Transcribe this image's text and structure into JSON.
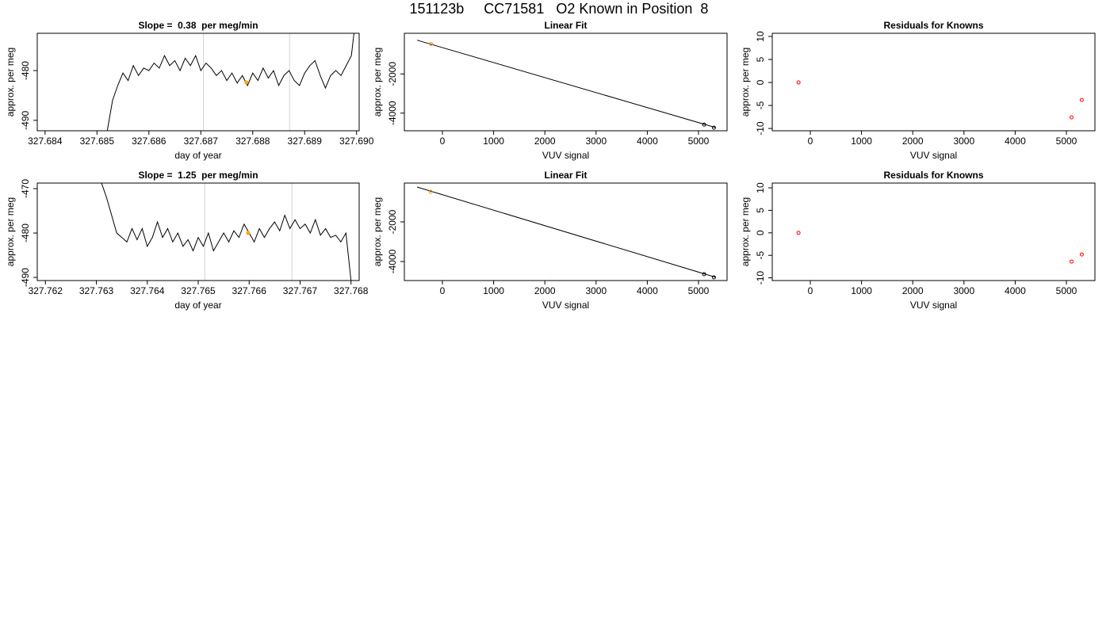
{
  "title": "151123b     CC71581   O2 Known in Position  8",
  "chart_data": [
    {
      "type": "line",
      "title": "Slope =  0.38  per meg/min",
      "xlabel": "day of year",
      "ylabel": "approx. per meg",
      "xlim": [
        327.68385,
        327.69005
      ],
      "ylim": [
        -492.1,
        -472.5
      ],
      "xticks": [
        327.684,
        327.685,
        327.686,
        327.687,
        327.688,
        327.689,
        {
          "value": 327.69,
          "label": "327.690"
        }
      ],
      "yticks": [
        -480,
        -490
      ],
      "color": "#000000",
      "x": [
        327.6852,
        327.6853,
        327.6854,
        327.6855,
        327.6856,
        327.6857,
        327.6858,
        327.6859,
        327.686,
        327.6861,
        327.6862,
        327.6863,
        327.6864,
        327.6865,
        327.6866,
        327.6867,
        327.6868,
        327.6869,
        327.687,
        327.6871,
        327.6872,
        327.6873,
        327.6874,
        327.6875,
        327.6876,
        327.6877,
        327.6878,
        327.6879,
        327.688,
        327.6881,
        327.6882,
        327.6883,
        327.6884,
        327.6885,
        327.6886,
        327.6887,
        327.6888,
        327.6889,
        327.689,
        327.6891,
        327.6892,
        327.6893,
        327.6894,
        327.6895,
        327.6896,
        327.6897,
        327.6898,
        327.6899,
        327.68995
      ],
      "values": [
        -492,
        -486,
        -483,
        -480.5,
        -482,
        -479,
        -481,
        -479.5,
        -480,
        -478.5,
        -479.5,
        -477,
        -479,
        -478,
        -480,
        -477.5,
        -479,
        -477,
        -480,
        -478.5,
        -479.5,
        -481,
        -480,
        -482,
        -480.5,
        -482.5,
        -481,
        -483,
        -480.5,
        -482,
        -479.5,
        -481.5,
        -480,
        -483,
        -481,
        -480,
        -482,
        -483,
        -480.5,
        -479,
        -478,
        -481,
        -483.5,
        -481,
        -480,
        -481,
        -479,
        -477,
        -472.5
      ],
      "vlines": [
        327.68705,
        327.68871
      ],
      "vline_color": "#d3d3d3",
      "highlight": {
        "x": 327.68788,
        "y": -482.4,
        "color": "#ffa500"
      }
    },
    {
      "type": "scatter",
      "title": "Linear Fit",
      "xlabel": "VUV signal",
      "ylabel": "approx. per meg",
      "xlim": [
        -743,
        5557
      ],
      "ylim": [
        -4902,
        78
      ],
      "xticks": [
        0,
        1000,
        2000,
        3000,
        4000,
        5000
      ],
      "yticks": [
        -2000,
        -4000
      ],
      "fit_line": {
        "x": [
          -495,
          5340
        ],
        "y": [
          -274,
          -4745
        ],
        "color": "#000000"
      },
      "series": [
        {
          "color": "#ff8c00",
          "x": [
            -220
          ],
          "values": [
            -470
          ]
        },
        {
          "color": "#000000",
          "x": [
            5110,
            5300
          ],
          "values": [
            -4588,
            -4745
          ]
        }
      ]
    },
    {
      "type": "scatter",
      "title": "Residuals for Knowns",
      "xlabel": "VUV signal",
      "ylabel": "approx. per meg",
      "xlim": [
        -743,
        5557
      ],
      "ylim": [
        -10.5,
        10.69
      ],
      "xticks": [
        0,
        1000,
        2000,
        3000,
        4000,
        5000
      ],
      "yticks": [
        10,
        5,
        0,
        -5,
        -10
      ],
      "series": [
        {
          "color": "#ff0000",
          "x": [
            -230,
            5100,
            5300
          ],
          "values": [
            0,
            -7.6,
            -3.8
          ]
        }
      ]
    },
    {
      "type": "line",
      "title": "Slope =  1.25  per meg/min",
      "xlabel": "day of year",
      "ylabel": "approx. per meg",
      "xlim": [
        327.76184,
        327.76816
      ],
      "ylim": [
        -490.7,
        -468.75
      ],
      "xticks": [
        327.762,
        327.763,
        327.764,
        327.765,
        327.766,
        327.767,
        327.768
      ],
      "yticks": [
        -470,
        -480,
        -490
      ],
      "color": "#000000",
      "x": [
        327.7631,
        327.7632,
        327.7633,
        327.7634,
        327.7635,
        327.7636,
        327.7637,
        327.7638,
        327.7639,
        327.764,
        327.7641,
        327.7642,
        327.7643,
        327.7644,
        327.7645,
        327.7646,
        327.7647,
        327.7648,
        327.7649,
        327.765,
        327.7651,
        327.7652,
        327.7653,
        327.7654,
        327.7655,
        327.7656,
        327.7657,
        327.7658,
        327.7659,
        327.766,
        327.7661,
        327.7662,
        327.7663,
        327.7664,
        327.7665,
        327.7666,
        327.7667,
        327.7668,
        327.7669,
        327.767,
        327.7671,
        327.7672,
        327.7673,
        327.7674,
        327.7675,
        327.7676,
        327.7677,
        327.7678,
        327.7679,
        327.768
      ],
      "values": [
        -468.7,
        -472,
        -476,
        -480,
        -481,
        -482,
        -479,
        -481.5,
        -479,
        -483,
        -481,
        -477.5,
        -481,
        -479,
        -482,
        -480,
        -483,
        -481.5,
        -484,
        -481,
        -483,
        -480,
        -484,
        -482,
        -480,
        -482,
        -479.5,
        -481,
        -478,
        -480,
        -482,
        -479,
        -481,
        -479,
        -477.5,
        -479.5,
        -476,
        -479,
        -477,
        -479,
        -478,
        -480,
        -477,
        -480.5,
        -479,
        -481,
        -480.5,
        -482,
        -480,
        -490.7
      ],
      "vlines": [
        327.76513,
        327.76684
      ],
      "vline_color": "#d3d3d3",
      "highlight": {
        "x": 327.76598,
        "y": -480,
        "color": "#ffa500"
      }
    },
    {
      "type": "scatter",
      "title": "Linear Fit",
      "xlabel": "VUV signal",
      "ylabel": "approx. per meg",
      "xlim": [
        -743,
        5557
      ],
      "ylim": [
        -4960,
        -40
      ],
      "xticks": [
        0,
        1000,
        2000,
        3000,
        4000,
        5000
      ],
      "yticks": [
        -2000,
        -4000
      ],
      "fit_line": {
        "x": [
          -495,
          5340
        ],
        "y": [
          -240,
          -4800
        ],
        "color": "#000000"
      },
      "series": [
        {
          "color": "#ff8c00",
          "x": [
            -230
          ],
          "values": [
            -480
          ]
        },
        {
          "color": "#000000",
          "x": [
            5110,
            5300
          ],
          "values": [
            -4640,
            -4800
          ]
        }
      ]
    },
    {
      "type": "scatter",
      "title": "Residuals for Knowns",
      "xlabel": "VUV signal",
      "ylabel": "approx. per meg",
      "xlim": [
        -743,
        5557
      ],
      "ylim": [
        -10.6,
        11.06
      ],
      "xticks": [
        0,
        1000,
        2000,
        3000,
        4000,
        5000
      ],
      "yticks": [
        10,
        5,
        0,
        -5,
        -10
      ],
      "series": [
        {
          "color": "#ff0000",
          "x": [
            -230,
            5100,
            5300
          ],
          "values": [
            0,
            -6.4,
            -4.8
          ]
        }
      ]
    }
  ]
}
